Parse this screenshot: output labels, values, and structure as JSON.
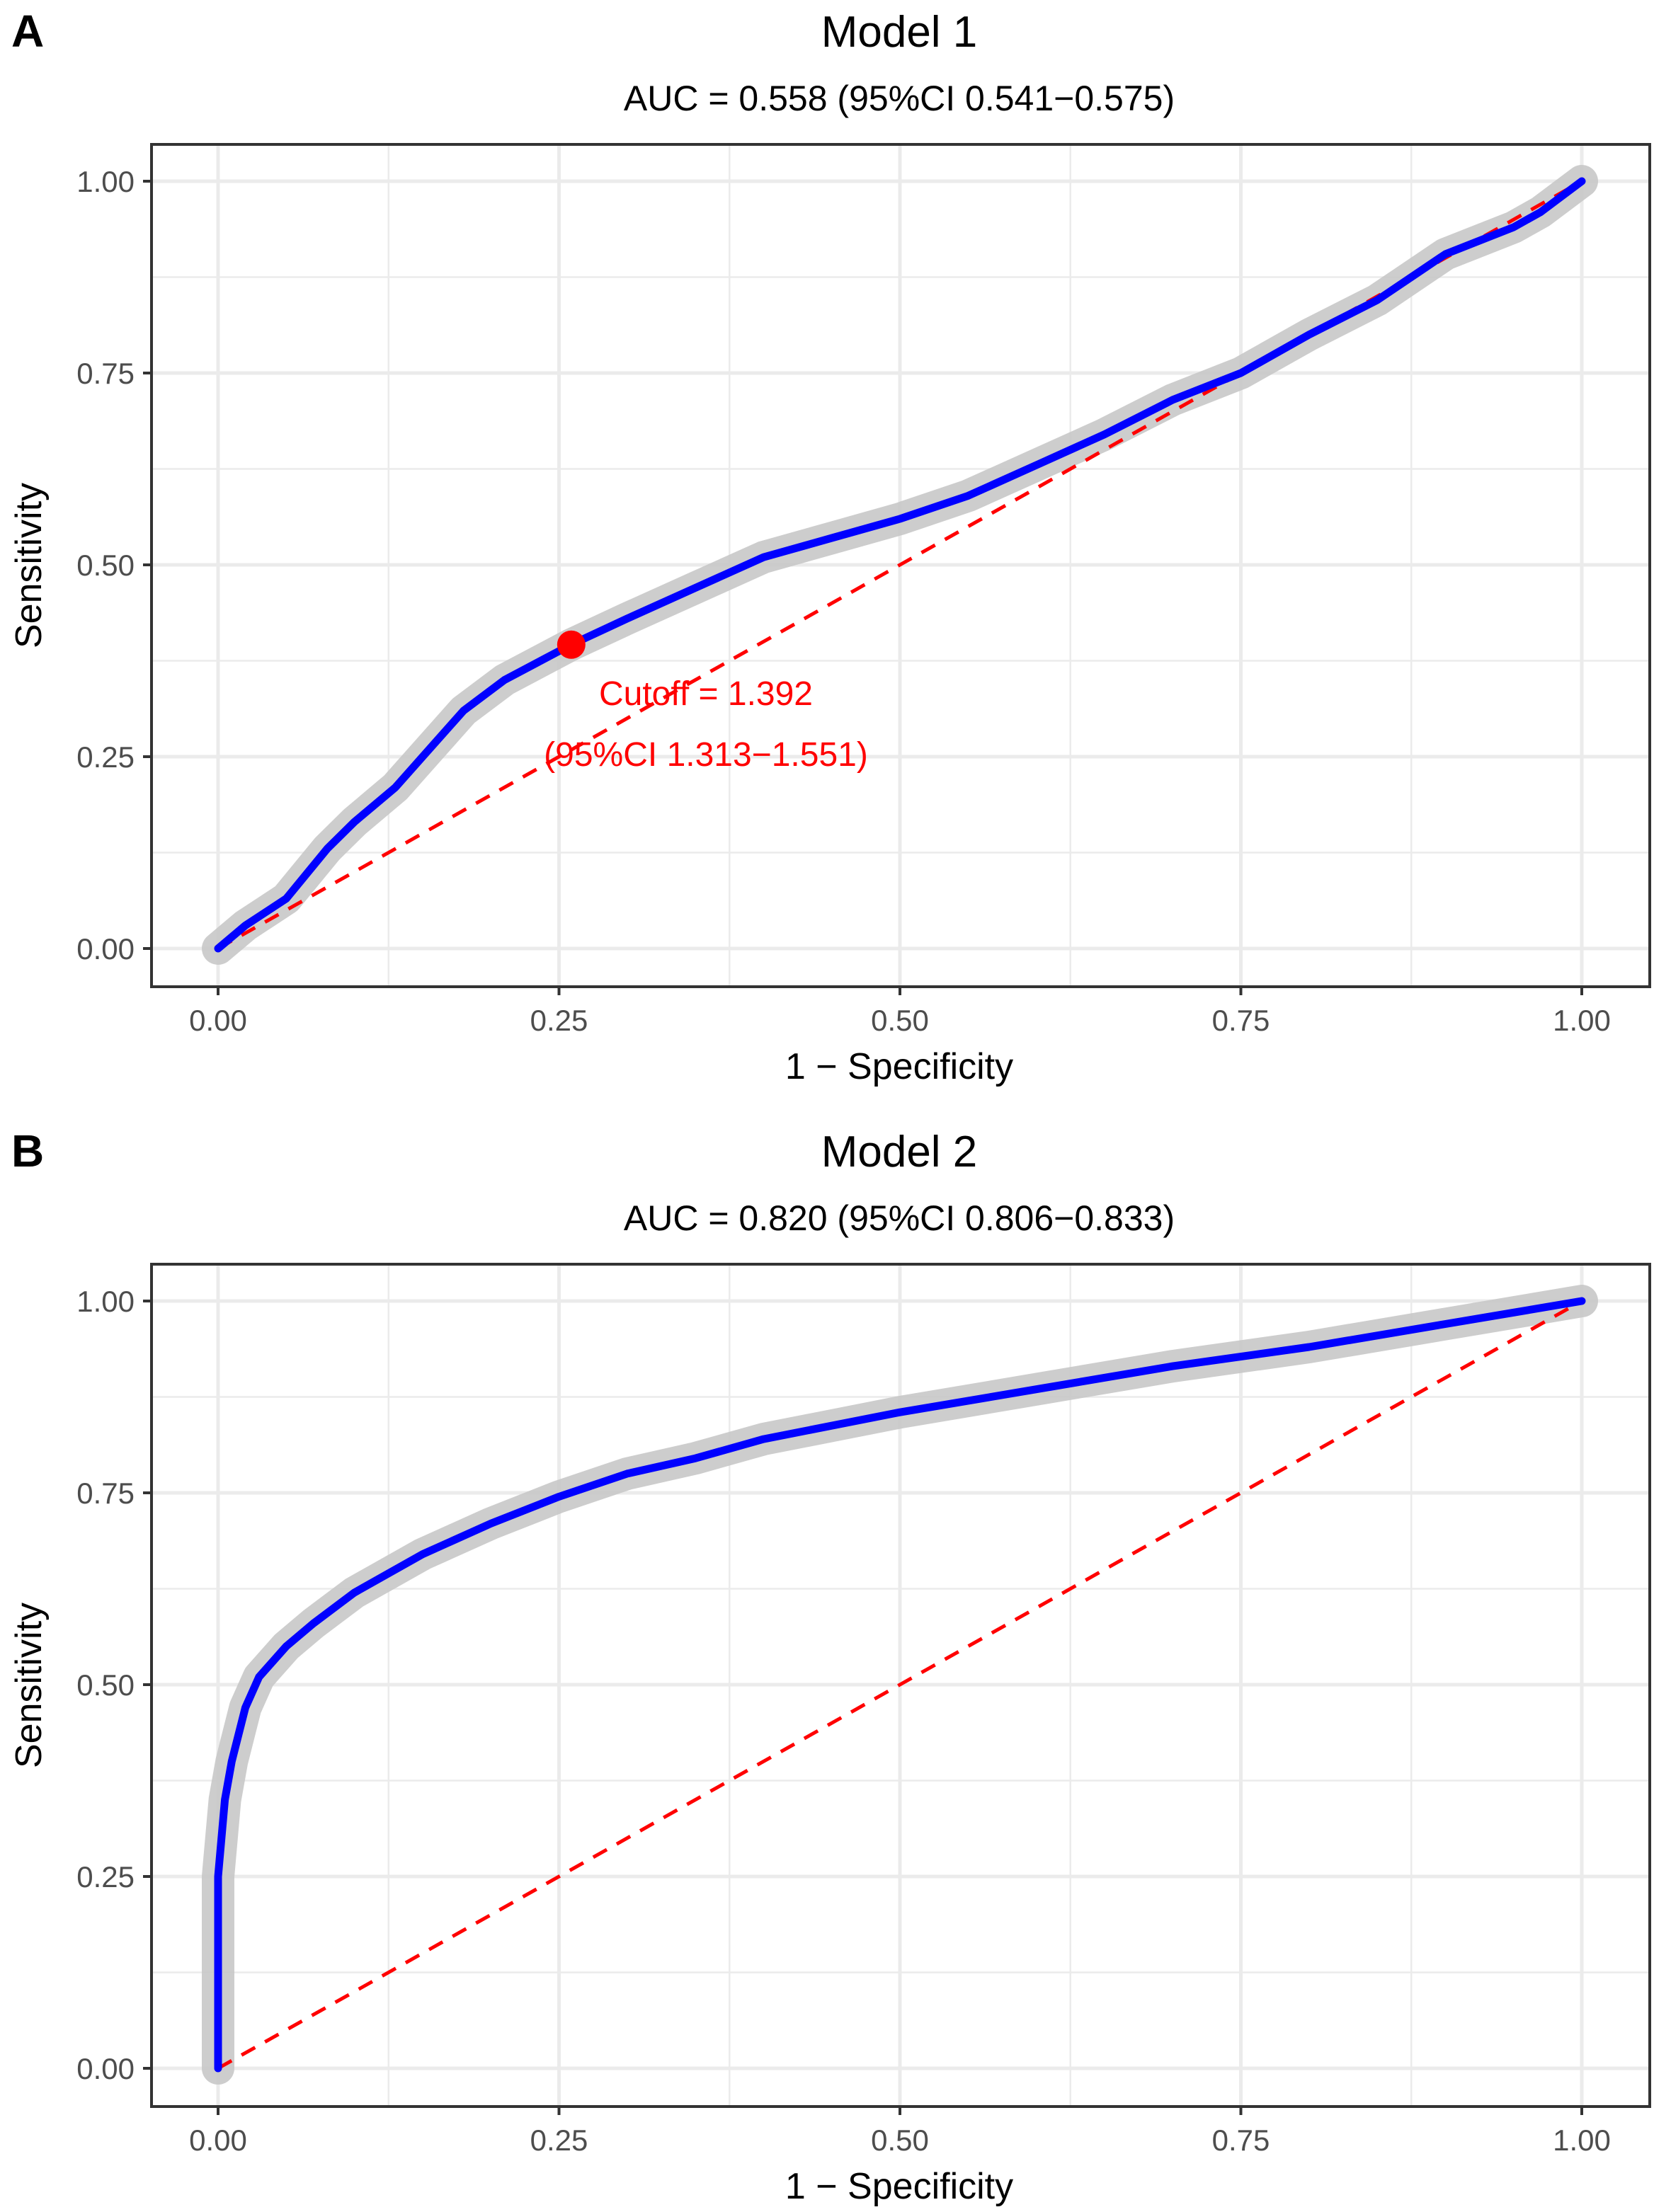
{
  "chart_data": [
    {
      "type": "line",
      "panel_label": "A",
      "title": "Model 1",
      "subtitle": "AUC = 0.558 (95%CI 0.541−0.575)",
      "xlabel": "1 − Specificity",
      "ylabel": "Sensitivity",
      "xlim": [
        0,
        1
      ],
      "ylim": [
        0,
        1
      ],
      "xticks": [
        "0.00",
        "0.25",
        "0.50",
        "0.75",
        "1.00"
      ],
      "yticks": [
        "0.00",
        "0.25",
        "0.50",
        "0.75",
        "1.00"
      ],
      "grid": true,
      "series": [
        {
          "name": "ROC",
          "color": "#0000ff",
          "x": [
            0,
            0.02,
            0.05,
            0.08,
            0.1,
            0.13,
            0.15,
            0.18,
            0.21,
            0.259,
            0.3,
            0.35,
            0.4,
            0.45,
            0.5,
            0.55,
            0.6,
            0.65,
            0.7,
            0.75,
            0.8,
            0.85,
            0.9,
            0.95,
            0.97,
            1
          ],
          "y": [
            0,
            0.03,
            0.065,
            0.13,
            0.165,
            0.21,
            0.25,
            0.31,
            0.35,
            0.396,
            0.43,
            0.47,
            0.51,
            0.535,
            0.56,
            0.59,
            0.63,
            0.67,
            0.715,
            0.75,
            0.8,
            0.845,
            0.905,
            0.94,
            0.96,
            1
          ]
        },
        {
          "name": "reference",
          "color": "#ff0000",
          "x": [
            0,
            1
          ],
          "y": [
            0,
            1
          ]
        }
      ],
      "band_color": "#c8c8c8",
      "cutoff": {
        "x": 0.259,
        "y": 0.396,
        "color": "#ff0000",
        "label1": "Cutoff = 1.392",
        "label2": "(95%CI 1.313−1.551)"
      }
    },
    {
      "type": "line",
      "panel_label": "B",
      "title": "Model 2",
      "subtitle": "AUC = 0.820 (95%CI 0.806−0.833)",
      "xlabel": "1 − Specificity",
      "ylabel": "Sensitivity",
      "xlim": [
        0,
        1
      ],
      "ylim": [
        0,
        1
      ],
      "xticks": [
        "0.00",
        "0.25",
        "0.50",
        "0.75",
        "1.00"
      ],
      "yticks": [
        "0.00",
        "0.25",
        "0.50",
        "0.75",
        "1.00"
      ],
      "grid": true,
      "series": [
        {
          "name": "ROC",
          "color": "#0000ff",
          "x": [
            0,
            0,
            0.005,
            0.01,
            0.02,
            0.03,
            0.05,
            0.07,
            0.1,
            0.15,
            0.2,
            0.25,
            0.3,
            0.35,
            0.4,
            0.5,
            0.6,
            0.7,
            0.8,
            0.9,
            0.95,
            1
          ],
          "y": [
            0,
            0.25,
            0.35,
            0.4,
            0.47,
            0.51,
            0.55,
            0.58,
            0.62,
            0.67,
            0.71,
            0.745,
            0.775,
            0.795,
            0.82,
            0.855,
            0.885,
            0.915,
            0.94,
            0.97,
            0.985,
            1
          ]
        },
        {
          "name": "reference",
          "color": "#ff0000",
          "x": [
            0,
            1
          ],
          "y": [
            0,
            1
          ]
        }
      ],
      "band_color": "#c8c8c8"
    }
  ]
}
